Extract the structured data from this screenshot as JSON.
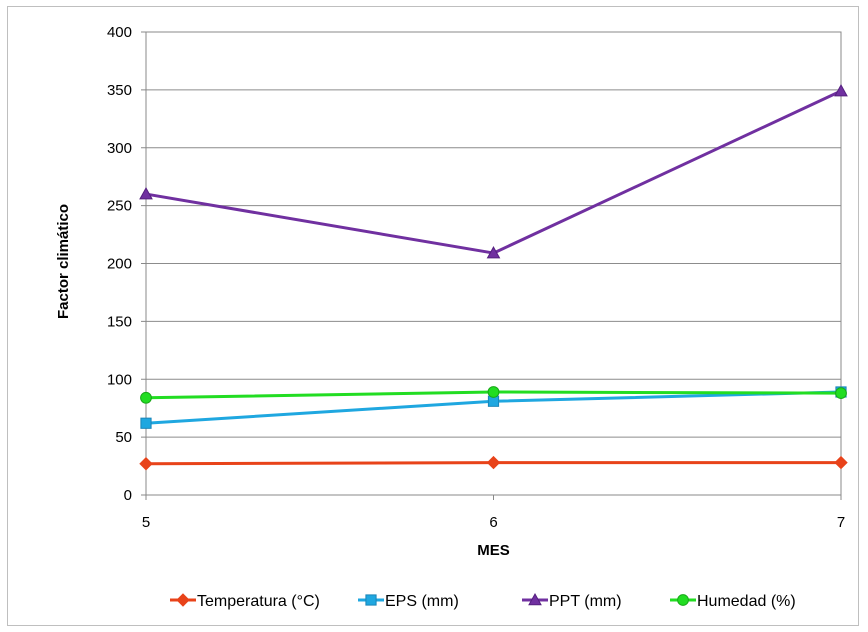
{
  "chart_data": {
    "type": "line",
    "x": [
      5,
      6,
      7
    ],
    "xlabel": "MES",
    "ylabel": "Factor climático",
    "xlim": [
      5,
      7
    ],
    "ylim": [
      0,
      400
    ],
    "yticks": [
      "0",
      "50",
      "100",
      "150",
      "200",
      "250",
      "300",
      "350",
      "400"
    ],
    "xticks": [
      "5",
      "6",
      "7"
    ],
    "grid": "horizontal",
    "legend_position": "bottom",
    "series": [
      {
        "name": "Temperatura (°C)",
        "values": [
          27,
          28,
          28
        ],
        "color": "#e8431a",
        "marker": "diamond"
      },
      {
        "name": "EPS (mm)",
        "values": [
          62,
          81,
          89
        ],
        "color": "#1fa7e0",
        "marker": "square"
      },
      {
        "name": "PPT (mm)",
        "values": [
          260,
          209,
          349
        ],
        "color": "#7030a0",
        "marker": "triangle"
      },
      {
        "name": "Humedad (%)",
        "values": [
          84,
          89,
          88
        ],
        "color": "#22dd22",
        "marker": "circle"
      }
    ]
  }
}
